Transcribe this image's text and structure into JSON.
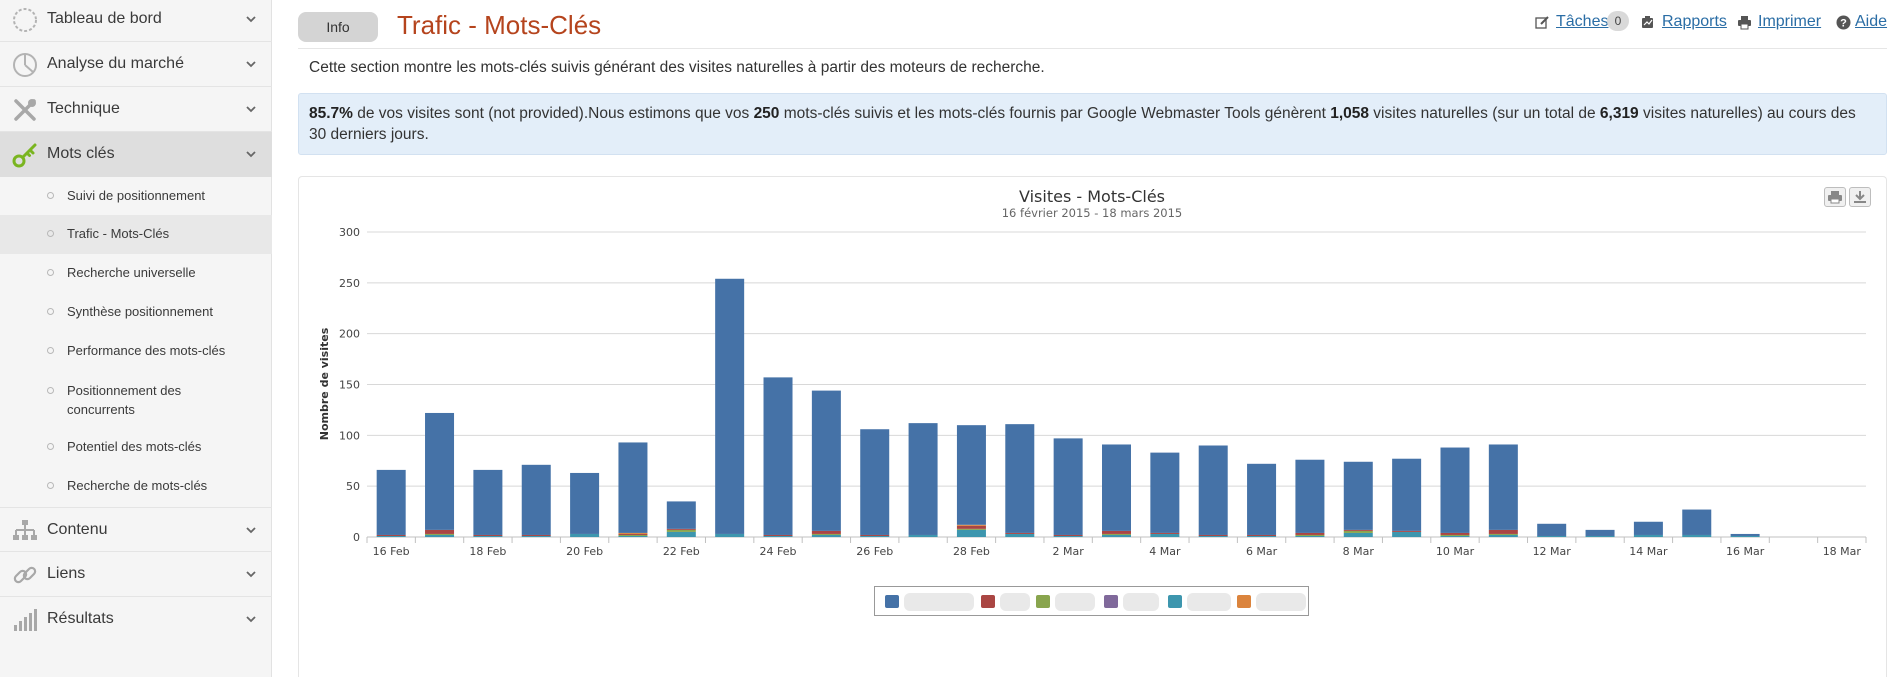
{
  "sidebar": {
    "items": [
      {
        "label": "Tableau de bord",
        "icon": "dashboard-gauge-icon"
      },
      {
        "label": "Analyse du marché",
        "icon": "pie-chart-icon"
      },
      {
        "label": "Technique",
        "icon": "tools-icon"
      },
      {
        "label": "Mots clés",
        "icon": "key-icon",
        "active": true
      },
      {
        "label": "Contenu",
        "icon": "site-structure-icon"
      },
      {
        "label": "Liens",
        "icon": "link-icon"
      },
      {
        "label": "Résultats",
        "icon": "bar-signal-icon"
      }
    ],
    "subitems": [
      {
        "label": "Suivi de positionnement"
      },
      {
        "label": "Trafic - Mots-Clés",
        "active": true
      },
      {
        "label": "Recherche universelle"
      },
      {
        "label": "Synthèse positionnement"
      },
      {
        "label": "Performance des mots-clés"
      },
      {
        "label": "Positionnement des concurrents"
      },
      {
        "label": "Potentiel des mots-clés"
      },
      {
        "label": "Recherche de mots-clés"
      }
    ]
  },
  "header": {
    "info_label": "Info",
    "title": "Trafic - Mots-Clés",
    "links": {
      "tasks": "Tâches",
      "tasks_count": "0",
      "reports": "Rapports",
      "print": "Imprimer",
      "help": "Aide"
    }
  },
  "description": "Cette section montre les mots-clés suivis générant des visites naturelles à partir des moteurs de recherche.",
  "summary": {
    "pct": "85.7%",
    "t1": " de vos visites sont (not provided).Nous estimons que vos ",
    "count": "250",
    "t2": " mots-clés suivis et les mots-clés fournis par Google Webmaster Tools génèrent ",
    "visits": "1,058",
    "t3": " visites naturelles (sur un total de ",
    "total": "6,319",
    "t4": " visites naturelles) au cours des 30 derniers jours."
  },
  "colors": {
    "accent_title": "#b5441d",
    "link": "#2a6da5",
    "bar_main": "#4572a7",
    "series": [
      "#4572a7",
      "#aa4643",
      "#89a54e",
      "#80699b",
      "#3d96ae",
      "#db843d"
    ]
  },
  "chart_data": {
    "type": "bar",
    "stacked": true,
    "title": "Visites - Mots-Clés",
    "subtitle": "16 février 2015 - 18 mars 2015",
    "ylabel": "Nombre de visites",
    "ylim": [
      0,
      300
    ],
    "yticks": [
      0,
      50,
      100,
      150,
      200,
      250,
      300
    ],
    "categories": [
      "16 Feb",
      "17 Feb",
      "18 Feb",
      "19 Feb",
      "20 Feb",
      "21 Feb",
      "22 Feb",
      "23 Feb",
      "24 Feb",
      "25 Feb",
      "26 Feb",
      "27 Feb",
      "28 Feb",
      "1 Mar",
      "2 Mar",
      "3 Mar",
      "4 Mar",
      "5 Mar",
      "6 Mar",
      "7 Mar",
      "8 Mar",
      "9 Mar",
      "10 Mar",
      "11 Mar",
      "12 Mar",
      "13 Mar",
      "14 Mar",
      "15 Mar",
      "16 Mar",
      "17 Mar",
      "18 Mar"
    ],
    "xtick_labels": [
      "16 Feb",
      "",
      "18 Feb",
      "",
      "20 Feb",
      "",
      "22 Feb",
      "",
      "24 Feb",
      "",
      "26 Feb",
      "",
      "28 Feb",
      "",
      "2 Mar",
      "",
      "4 Mar",
      "",
      "6 Mar",
      "",
      "8 Mar",
      "",
      "10 Mar",
      "",
      "12 Mar",
      "",
      "14 Mar",
      "",
      "16 Mar",
      "",
      "18 Mar"
    ],
    "series": [
      {
        "values": [
          64,
          115,
          64,
          69,
          60,
          89,
          27,
          251,
          155,
          138,
          104,
          110,
          98,
          107,
          95,
          85,
          79,
          88,
          70,
          72,
          67,
          71,
          84,
          84,
          12,
          6,
          13,
          25,
          2,
          0,
          0
        ]
      },
      {
        "values": [
          1,
          4,
          1,
          1,
          0,
          1,
          1,
          0,
          1,
          3,
          1,
          0,
          3,
          1,
          1,
          3,
          1,
          1,
          1,
          2,
          1,
          1,
          2,
          4,
          0,
          0,
          0,
          0,
          0,
          0,
          0
        ]
      },
      {
        "values": [
          0,
          1,
          0,
          0,
          0,
          1,
          2,
          0,
          0,
          1,
          0,
          0,
          1,
          0,
          0,
          1,
          0,
          0,
          0,
          1,
          2,
          0,
          1,
          1,
          0,
          0,
          0,
          0,
          0,
          0,
          0
        ]
      },
      {
        "values": [
          0,
          0,
          0,
          0,
          0,
          0,
          0,
          0,
          0,
          0,
          0,
          0,
          0,
          0,
          0,
          0,
          0,
          0,
          0,
          0,
          0,
          0,
          0,
          0,
          0,
          0,
          0,
          0,
          0,
          0,
          0
        ]
      },
      {
        "values": [
          1,
          2,
          1,
          1,
          3,
          1,
          5,
          3,
          1,
          2,
          1,
          2,
          7,
          3,
          1,
          2,
          3,
          1,
          1,
          1,
          4,
          5,
          1,
          2,
          1,
          1,
          2,
          2,
          1,
          0,
          0
        ]
      },
      {
        "values": [
          0,
          0,
          0,
          0,
          0,
          1,
          0,
          0,
          0,
          0,
          0,
          0,
          1,
          0,
          0,
          0,
          0,
          0,
          0,
          0,
          0,
          0,
          0,
          0,
          0,
          0,
          0,
          0,
          0,
          0,
          0
        ]
      }
    ],
    "grid": true,
    "legend": "bottom-center"
  }
}
